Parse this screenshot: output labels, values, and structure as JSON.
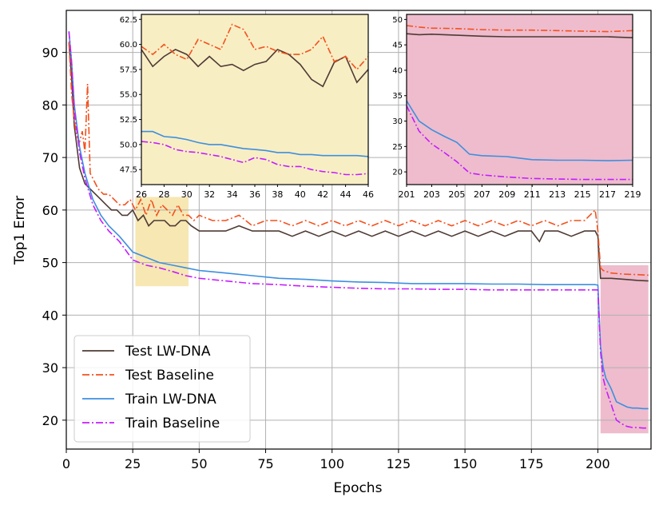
{
  "chart_data": {
    "type": "line",
    "title": "",
    "xlabel": "Epochs",
    "ylabel": "Top1 Error",
    "xlim": [
      0,
      220
    ],
    "ylim": [
      14.5,
      98
    ],
    "xticks": [
      0,
      25,
      50,
      75,
      100,
      125,
      150,
      175,
      200
    ],
    "yticks": [
      20,
      30,
      40,
      50,
      60,
      70,
      80,
      90
    ],
    "grid": true,
    "legend_position": "lower-left",
    "colors": {
      "test_lwdna": "#4e3b35",
      "test_baseline": "#f4511e",
      "train_lwdna": "#3d8fe0",
      "train_baseline": "#c51dff",
      "highlight_early": "#f6e7b3",
      "highlight_late": "#eebccd"
    },
    "highlights": [
      {
        "name": "early-zoom-region",
        "x": [
          26,
          46
        ],
        "y": [
          45.5,
          62.5
        ],
        "color": "#f6e7b3"
      },
      {
        "name": "late-zoom-region",
        "x": [
          201,
          219
        ],
        "y": [
          17.5,
          49.5
        ],
        "color": "#eebccd"
      }
    ],
    "series": [
      {
        "name": "Test LW-DNA",
        "style": "solid",
        "color": "#4e3b35",
        "x": [
          1,
          2,
          3,
          5,
          7,
          9,
          11,
          13,
          15,
          17,
          19,
          21,
          23,
          25,
          27,
          29,
          31,
          33,
          35,
          37,
          39,
          41,
          43,
          45,
          47,
          50,
          55,
          60,
          65,
          70,
          75,
          80,
          85,
          90,
          95,
          100,
          105,
          110,
          115,
          120,
          125,
          130,
          135,
          140,
          145,
          150,
          155,
          160,
          165,
          170,
          175,
          178,
          180,
          185,
          190,
          195,
          199,
          200,
          201,
          202,
          205,
          210,
          215,
          219
        ],
        "y": [
          92,
          85,
          76,
          68,
          65,
          64,
          63,
          62,
          61,
          60,
          60,
          59,
          59,
          60,
          58,
          59,
          57,
          58,
          58,
          58,
          57,
          57,
          58,
          58,
          57,
          56,
          56,
          56,
          57,
          56,
          56,
          56,
          55,
          56,
          55,
          56,
          55,
          56,
          55,
          56,
          55,
          56,
          55,
          56,
          55,
          56,
          55,
          56,
          55,
          56,
          56,
          54,
          56,
          56,
          55,
          56,
          56,
          55,
          47,
          47,
          47,
          46.8,
          46.6,
          46.5
        ]
      },
      {
        "name": "Test Baseline",
        "style": "dashdot",
        "color": "#f4511e",
        "x": [
          1,
          2,
          3,
          4,
          5,
          6,
          7,
          8,
          9,
          10,
          12,
          14,
          16,
          18,
          20,
          22,
          24,
          26,
          28,
          30,
          32,
          34,
          36,
          38,
          40,
          42,
          44,
          46,
          48,
          50,
          55,
          60,
          65,
          70,
          75,
          80,
          85,
          90,
          95,
          100,
          105,
          110,
          115,
          120,
          125,
          130,
          135,
          140,
          145,
          150,
          155,
          160,
          165,
          170,
          175,
          180,
          185,
          190,
          195,
          199,
          200,
          201,
          202,
          205,
          210,
          215,
          219
        ],
        "y": [
          92,
          82,
          77,
          74,
          73,
          75,
          71,
          84,
          67,
          66,
          64,
          63,
          63,
          62,
          61,
          61,
          62,
          60,
          62,
          59,
          62,
          59,
          61,
          60,
          59,
          61,
          59,
          59,
          58,
          59,
          58,
          58,
          59,
          57,
          58,
          58,
          57,
          58,
          57,
          58,
          57,
          58,
          57,
          58,
          57,
          58,
          57,
          58,
          57,
          58,
          57,
          58,
          57,
          58,
          57,
          58,
          57,
          58,
          58,
          60,
          56,
          49,
          48.5,
          48,
          47.8,
          47.7,
          47.6
        ]
      },
      {
        "name": "Train LW-DNA",
        "style": "solid",
        "color": "#3d8fe0",
        "x": [
          1,
          2,
          3,
          5,
          7,
          10,
          13,
          16,
          20,
          25,
          30,
          35,
          40,
          45,
          50,
          60,
          70,
          80,
          90,
          100,
          110,
          120,
          130,
          140,
          150,
          160,
          170,
          180,
          190,
          199,
          200,
          201,
          202,
          203,
          205,
          207,
          209,
          211,
          213,
          215,
          217,
          219
        ],
        "y": [
          94,
          88,
          80,
          72,
          67,
          62,
          59,
          57,
          55,
          52,
          51,
          50,
          49.5,
          49,
          48.5,
          48,
          47.5,
          47,
          46.8,
          46.5,
          46.3,
          46.2,
          46,
          46,
          46,
          45.9,
          45.9,
          45.8,
          45.8,
          45.8,
          45.7,
          34,
          30,
          28,
          26,
          23.5,
          23,
          22.5,
          22.3,
          22.3,
          22.2,
          22.2
        ]
      },
      {
        "name": "Train Baseline",
        "style": "dashdot",
        "color": "#c51dff",
        "x": [
          1,
          2,
          3,
          5,
          7,
          10,
          13,
          16,
          20,
          25,
          30,
          35,
          40,
          45,
          50,
          60,
          70,
          80,
          90,
          100,
          110,
          120,
          130,
          140,
          150,
          160,
          170,
          180,
          190,
          199,
          200,
          201,
          202,
          203,
          205,
          207,
          209,
          211,
          213,
          215,
          217,
          219
        ],
        "y": [
          94,
          88,
          79,
          71,
          66,
          61,
          58,
          56,
          54,
          50.5,
          49.5,
          49,
          48.3,
          47.5,
          47,
          46.5,
          46,
          45.8,
          45.5,
          45.3,
          45.1,
          45,
          45,
          44.9,
          44.9,
          44.8,
          44.8,
          44.8,
          44.8,
          44.8,
          44.8,
          33,
          28,
          26,
          23,
          20,
          19.3,
          18.8,
          18.6,
          18.6,
          18.5,
          18.5
        ]
      }
    ],
    "insets": [
      {
        "name": "early-zoom",
        "xlim": [
          26,
          46
        ],
        "ylim": [
          46,
          63
        ],
        "xticks": [
          26,
          28,
          30,
          32,
          34,
          36,
          38,
          40,
          42,
          44,
          46
        ],
        "yticks": [
          47.5,
          50.0,
          52.5,
          55.0,
          57.5,
          60.0,
          62.5
        ],
        "ytick_labels": [
          "47.5",
          "50.0",
          "52.5",
          "55.0",
          "57.5",
          "60.0",
          "62.5"
        ],
        "background": "#f8eec4",
        "series": [
          {
            "name": "Test LW-DNA",
            "x": [
              26,
              27,
              28,
              29,
              30,
              31,
              32,
              33,
              34,
              35,
              36,
              37,
              38,
              39,
              40,
              41,
              42,
              43,
              44,
              45,
              46
            ],
            "y": [
              59.5,
              57.8,
              58.8,
              59.5,
              59.0,
              57.8,
              58.8,
              57.8,
              58.0,
              57.4,
              58.0,
              58.3,
              59.5,
              59.0,
              58.0,
              56.5,
              55.8,
              58.2,
              58.8,
              56.2,
              57.5
            ]
          },
          {
            "name": "Test Baseline",
            "x": [
              26,
              27,
              28,
              29,
              30,
              31,
              32,
              33,
              34,
              35,
              36,
              37,
              38,
              39,
              40,
              41,
              42,
              43,
              44,
              45,
              46
            ],
            "y": [
              59.8,
              59.0,
              60.0,
              59.0,
              58.5,
              60.5,
              60.0,
              59.5,
              62.0,
              61.5,
              59.5,
              59.8,
              59.3,
              59.0,
              59.0,
              59.5,
              60.8,
              58.3,
              58.8,
              57.5,
              58.8
            ]
          },
          {
            "name": "Train LW-DNA",
            "x": [
              26,
              27,
              28,
              29,
              30,
              31,
              32,
              33,
              34,
              35,
              36,
              37,
              38,
              39,
              40,
              41,
              42,
              43,
              44,
              45,
              46
            ],
            "y": [
              51.3,
              51.3,
              50.8,
              50.7,
              50.5,
              50.2,
              50.0,
              50.0,
              49.8,
              49.6,
              49.5,
              49.4,
              49.2,
              49.2,
              49.0,
              49.0,
              48.9,
              48.9,
              48.9,
              48.9,
              48.8
            ]
          },
          {
            "name": "Train Baseline",
            "x": [
              26,
              27,
              28,
              29,
              30,
              31,
              32,
              33,
              34,
              35,
              36,
              37,
              38,
              39,
              40,
              41,
              42,
              43,
              44,
              45,
              46
            ],
            "y": [
              50.3,
              50.2,
              50.0,
              49.5,
              49.3,
              49.2,
              49.0,
              48.8,
              48.5,
              48.2,
              48.7,
              48.5,
              48.0,
              47.8,
              47.8,
              47.5,
              47.3,
              47.2,
              47.0,
              47.0,
              47.1
            ]
          }
        ]
      },
      {
        "name": "late-zoom",
        "xlim": [
          201,
          219
        ],
        "ylim": [
          17.5,
          51
        ],
        "xticks": [
          201,
          203,
          205,
          207,
          209,
          211,
          213,
          215,
          217,
          219
        ],
        "yticks": [
          20,
          25,
          30,
          35,
          40,
          45,
          50
        ],
        "ytick_labels": [
          "20",
          "25",
          "30",
          "35",
          "40",
          "45",
          "50"
        ],
        "background": "#eebccd",
        "series": [
          {
            "name": "Test LW-DNA",
            "x": [
              201,
              202,
              203,
              205,
              207,
              209,
              211,
              213,
              215,
              217,
              219
            ],
            "y": [
              47.2,
              47.0,
              47.1,
              46.9,
              46.7,
              46.6,
              46.6,
              46.6,
              46.6,
              46.6,
              46.4
            ]
          },
          {
            "name": "Test Baseline",
            "x": [
              201,
              202,
              203,
              205,
              207,
              209,
              211,
              213,
              215,
              217,
              219
            ],
            "y": [
              48.8,
              48.5,
              48.3,
              48.2,
              48.0,
              47.9,
              47.9,
              47.8,
              47.7,
              47.6,
              47.8
            ]
          },
          {
            "name": "Train LW-DNA",
            "x": [
              201,
              202,
              203,
              204,
              205,
              206,
              207,
              209,
              211,
              213,
              215,
              217,
              219
            ],
            "y": [
              34.0,
              30.0,
              28.3,
              27.0,
              25.8,
              23.5,
              23.2,
              23.0,
              22.4,
              22.3,
              22.3,
              22.2,
              22.3
            ]
          },
          {
            "name": "Train Baseline",
            "x": [
              201,
              202,
              203,
              204,
              205,
              206,
              207,
              209,
              211,
              213,
              215,
              217,
              219
            ],
            "y": [
              33.0,
              28.0,
              25.5,
              23.8,
              22.0,
              19.8,
              19.4,
              19.0,
              18.7,
              18.6,
              18.5,
              18.5,
              18.5
            ]
          }
        ]
      }
    ]
  }
}
